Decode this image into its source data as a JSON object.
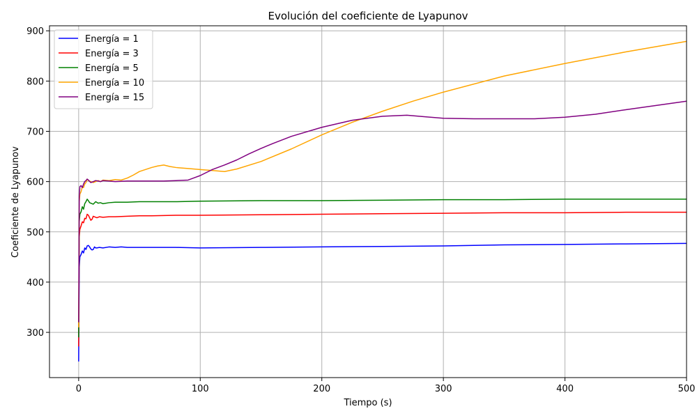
{
  "chart_data": {
    "type": "line",
    "title": "Evolución del coeficiente de Lyapunov",
    "xlabel": "Tiempo (s)",
    "ylabel": "Coeficiente de Lyapunov",
    "xlim": [
      -24,
      500
    ],
    "ylim": [
      210,
      910
    ],
    "xticks": [
      0,
      100,
      200,
      300,
      400,
      500
    ],
    "yticks": [
      300,
      400,
      500,
      600,
      700,
      800,
      900
    ],
    "grid": true,
    "legend_position": "top-left",
    "series": [
      {
        "name": "Energía = 1",
        "color": "#0000ff",
        "x": [
          0,
          0.5,
          1,
          2,
          3,
          4,
          5,
          6,
          7,
          8,
          9,
          10,
          11,
          12,
          13,
          14,
          15,
          17,
          20,
          25,
          30,
          35,
          40,
          50,
          60,
          80,
          100,
          150,
          200,
          250,
          300,
          350,
          400,
          450,
          500
        ],
        "y": [
          242,
          430,
          450,
          455,
          462,
          458,
          468,
          465,
          472,
          473,
          470,
          466,
          464,
          465,
          470,
          468,
          468,
          469,
          468,
          470,
          469,
          470,
          469,
          469,
          469,
          469,
          468,
          469,
          470,
          471,
          472,
          474,
          475,
          476,
          477
        ]
      },
      {
        "name": "Energía = 3",
        "color": "#ff0000",
        "x": [
          0,
          0.5,
          1,
          2,
          3,
          4,
          5,
          6,
          7,
          8,
          9,
          10,
          11,
          12,
          13,
          15,
          17,
          20,
          25,
          30,
          40,
          50,
          60,
          80,
          100,
          150,
          200,
          250,
          300,
          350,
          400,
          450,
          500
        ],
        "y": [
          272,
          490,
          505,
          512,
          520,
          518,
          527,
          526,
          535,
          533,
          528,
          523,
          525,
          531,
          530,
          528,
          530,
          529,
          530,
          530,
          531,
          532,
          532,
          533,
          533,
          534,
          535,
          536,
          537,
          538,
          538,
          539,
          539
        ]
      },
      {
        "name": "Energía = 5",
        "color": "#008000",
        "x": [
          0,
          0.5,
          1,
          2,
          3,
          4,
          5,
          6,
          7,
          8,
          9,
          10,
          12,
          14,
          16,
          18,
          20,
          25,
          30,
          40,
          50,
          60,
          80,
          100,
          150,
          200,
          250,
          300,
          350,
          400,
          450,
          500
        ],
        "y": [
          290,
          520,
          535,
          540,
          550,
          545,
          556,
          560,
          565,
          562,
          558,
          557,
          555,
          560,
          557,
          558,
          556,
          558,
          559,
          559,
          560,
          560,
          560,
          561,
          562,
          562,
          563,
          564,
          564,
          565,
          565,
          565
        ]
      },
      {
        "name": "Energía = 10",
        "color": "#ffa500",
        "x": [
          0,
          0.5,
          1,
          2,
          3,
          4,
          5,
          6,
          7,
          8,
          10,
          12,
          14,
          16,
          18,
          20,
          25,
          30,
          35,
          40,
          45,
          50,
          55,
          60,
          65,
          70,
          75,
          80,
          90,
          100,
          110,
          120,
          130,
          150,
          175,
          200,
          225,
          250,
          275,
          300,
          350,
          400,
          450,
          500
        ],
        "y": [
          310,
          560,
          575,
          580,
          590,
          588,
          595,
          598,
          605,
          602,
          600,
          598,
          600,
          602,
          600,
          603,
          602,
          604,
          603,
          607,
          613,
          620,
          624,
          628,
          631,
          633,
          630,
          628,
          626,
          624,
          622,
          620,
          625,
          640,
          665,
          693,
          718,
          740,
          760,
          778,
          810,
          835,
          858,
          879
        ]
      },
      {
        "name": "Energía = 15",
        "color": "#800080",
        "x": [
          0,
          0.5,
          1,
          2,
          3,
          4,
          5,
          6,
          7,
          8,
          10,
          12,
          14,
          16,
          18,
          20,
          25,
          30,
          40,
          50,
          60,
          70,
          80,
          90,
          100,
          110,
          120,
          130,
          140,
          150,
          160,
          175,
          200,
          225,
          250,
          270,
          285,
          300,
          325,
          350,
          375,
          400,
          425,
          450,
          500
        ],
        "y": [
          320,
          570,
          590,
          592,
          588,
          595,
          600,
          602,
          605,
          603,
          598,
          600,
          602,
          601,
          600,
          602,
          601,
          600,
          601,
          601,
          601,
          601,
          602,
          603,
          612,
          624,
          633,
          643,
          655,
          666,
          676,
          690,
          708,
          722,
          730,
          732,
          729,
          726,
          725,
          725,
          725,
          728,
          734,
          743,
          760
        ]
      }
    ]
  }
}
